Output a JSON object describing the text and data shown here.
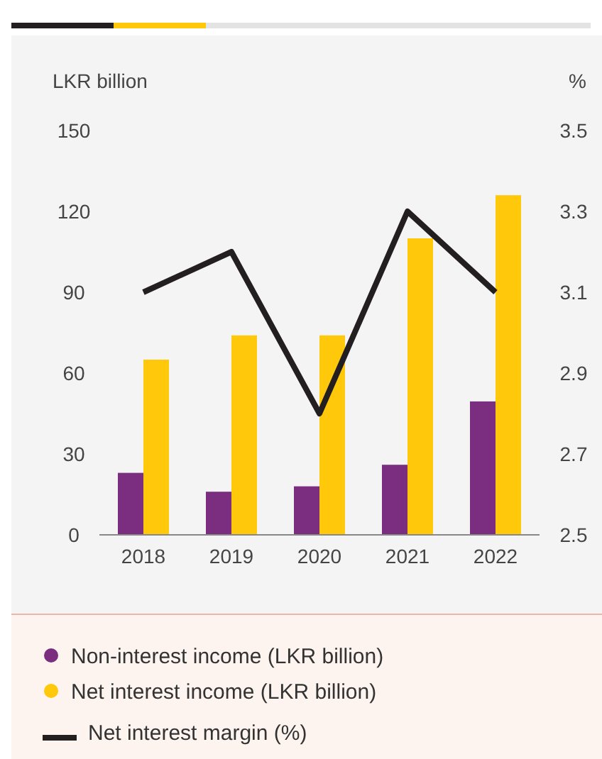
{
  "chart_data": {
    "type": "bar",
    "ylabel": "LKR billion",
    "y2label": "%",
    "categories": [
      "2018",
      "2019",
      "2020",
      "2021",
      "2022"
    ],
    "series": [
      {
        "name": "Non-interest income (LKR billion)",
        "color": "#7b2d80",
        "values": [
          23,
          16,
          18,
          26,
          49.5
        ]
      },
      {
        "name": "Net interest income (LKR billion)",
        "color": "#ffc80a",
        "values": [
          65,
          74,
          74,
          110,
          126
        ]
      },
      {
        "name": "Net interest margin (%)",
        "type": "line",
        "axis": "y2",
        "color": "#231f20",
        "values": [
          3.1,
          3.2,
          2.8,
          3.3,
          3.1
        ]
      }
    ],
    "ylim": [
      0,
      150
    ],
    "yticks": [
      0,
      30,
      60,
      90,
      120,
      150
    ],
    "y2lim": [
      2.5,
      3.5
    ],
    "y2ticks": [
      2.5,
      2.7,
      2.9,
      3.1,
      3.3,
      3.5
    ],
    "legend": "bottom",
    "grid": false
  }
}
